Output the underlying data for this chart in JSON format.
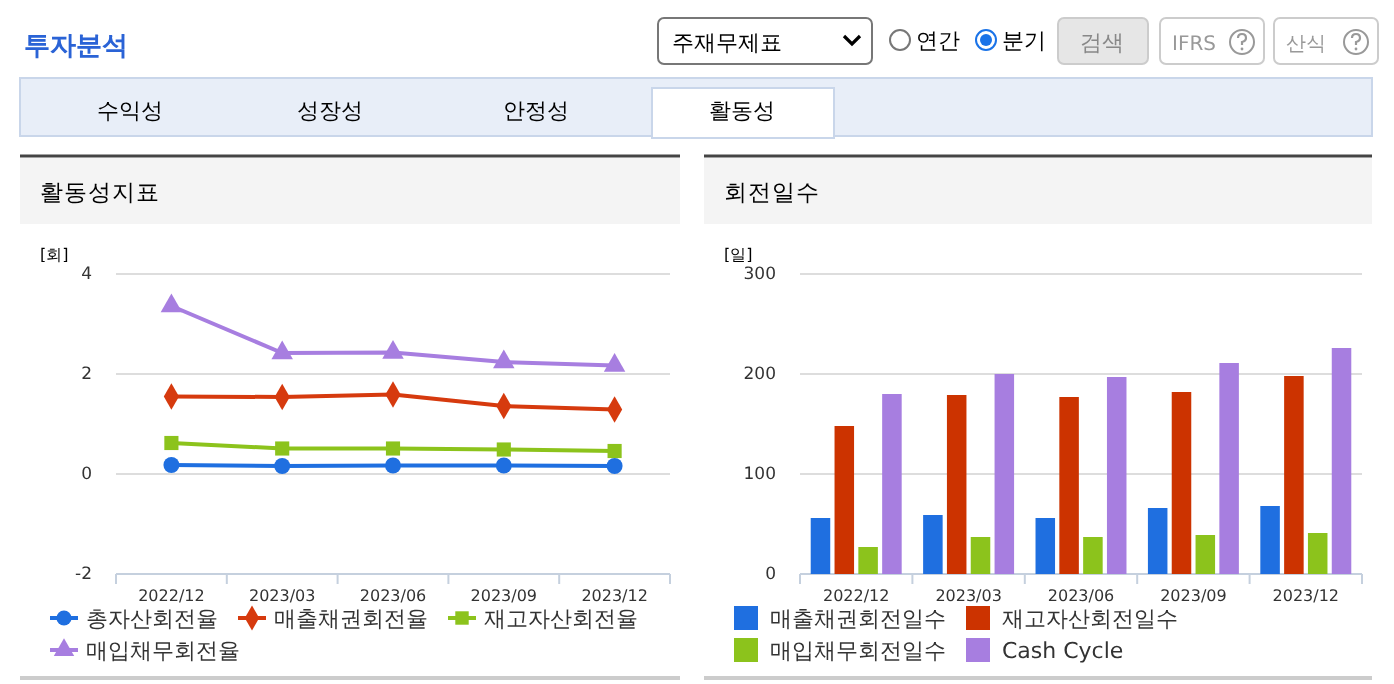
{
  "chart_data": [
    {
      "type": "other",
      "title": "투자분석",
      "annotations": [
        "주재무제표",
        "연간",
        "분기",
        "검색",
        "IFRS",
        "산식",
        "수익성",
        "성장성",
        "안정성",
        "활동성"
      ]
    },
    {
      "type": "line",
      "title": "활동성지표",
      "ylabel": "[회]",
      "categories": [
        "2022/12",
        "2023/03",
        "2023/06",
        "2023/09",
        "2023/12"
      ],
      "ylim": [
        -2,
        4
      ],
      "yticks": [
        -2,
        0,
        2,
        4
      ],
      "grid": "y",
      "legend": "bottom",
      "series": [
        {
          "name": "총자산회전율",
          "color": "#1f6fe0",
          "marker": "circle",
          "values": [
            0.18,
            0.16,
            0.17,
            0.17,
            0.16
          ]
        },
        {
          "name": "매출채권회전율",
          "color": "#d63a0e",
          "marker": "diamond",
          "values": [
            1.55,
            1.54,
            1.59,
            1.36,
            1.29
          ]
        },
        {
          "name": "재고자산회전율",
          "color": "#8cc31c",
          "marker": "square",
          "values": [
            0.62,
            0.51,
            0.51,
            0.49,
            0.46
          ]
        },
        {
          "name": "매입채무회전율",
          "color": "#a77ee0",
          "marker": "triangle",
          "values": [
            3.36,
            2.42,
            2.43,
            2.24,
            2.17
          ]
        }
      ]
    },
    {
      "type": "bar",
      "title": "회전일수",
      "ylabel": "[일]",
      "categories": [
        "2022/12",
        "2023/03",
        "2023/06",
        "2023/09",
        "2023/12"
      ],
      "ylim": [
        0,
        300
      ],
      "yticks": [
        0,
        100,
        200,
        300
      ],
      "grid": "y",
      "legend": "bottom",
      "series": [
        {
          "name": "매출채권회전일수",
          "color": "#1f6fe0",
          "values": [
            56,
            59,
            56,
            66,
            68
          ]
        },
        {
          "name": "재고자산회전일수",
          "color": "#cc3300",
          "values": [
            148,
            179,
            177,
            182,
            198
          ]
        },
        {
          "name": "매입채무회전일수",
          "color": "#8cc31c",
          "values": [
            27,
            37,
            37,
            39,
            41
          ]
        },
        {
          "name": "Cash Cycle",
          "color": "#a77ee0",
          "values": [
            180,
            200,
            197,
            211,
            226
          ]
        }
      ]
    }
  ]
}
